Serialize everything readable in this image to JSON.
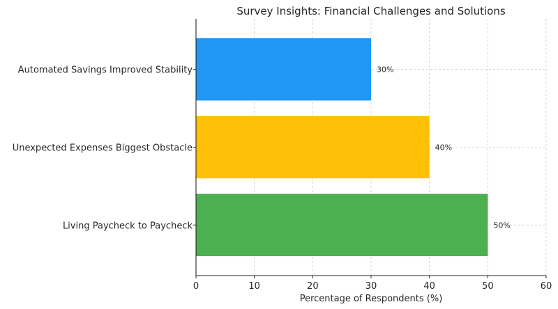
{
  "chart_data": {
    "type": "bar",
    "orientation": "horizontal",
    "title": "Survey Insights: Financial Challenges and Solutions",
    "xlabel": "Percentage of Respondents (%)",
    "ylabel": "",
    "xlim": [
      0,
      60
    ],
    "xticks": [
      0,
      10,
      20,
      30,
      40,
      50,
      60
    ],
    "grid": true,
    "categories": [
      "Living Paycheck to Paycheck",
      "Unexpected Expenses Biggest Obstacle",
      "Automated Savings Improved Stability"
    ],
    "values": [
      50,
      40,
      30
    ],
    "data_labels": [
      "50%",
      "40%",
      "30%"
    ],
    "colors": [
      "#4caf50",
      "#ffc107",
      "#2196f3"
    ]
  }
}
